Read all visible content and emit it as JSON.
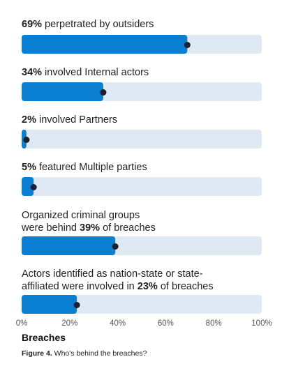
{
  "chart_data": {
    "type": "bar",
    "orientation": "horizontal",
    "xlim": [
      0,
      100
    ],
    "xticks": [
      "0%",
      "20%",
      "40%",
      "60%",
      "80%",
      "100%"
    ],
    "xlabel": "Breaches",
    "bar_color": "#0a7ed1",
    "track_color": "#dfe9f3",
    "marker_color": "#1c2033",
    "bars": [
      {
        "pre": "",
        "value_label": "69%",
        "post": " perpetrated by outsiders",
        "value": 69
      },
      {
        "pre": "",
        "value_label": "34%",
        "post": " involved Internal actors",
        "value": 34
      },
      {
        "pre": "",
        "value_label": "2%",
        "post": " involved Partners",
        "value": 2
      },
      {
        "pre": "",
        "value_label": "5%",
        "post": " featured Multiple parties",
        "value": 5
      },
      {
        "pre": "Organized criminal groups\nwere behind ",
        "value_label": "39%",
        "post": " of breaches",
        "value": 39
      },
      {
        "pre": "Actors identified as nation-state or state-\naffiliated were involved in ",
        "value_label": "23%",
        "post": " of breaches",
        "value": 23
      }
    ]
  },
  "caption": {
    "label": "Figure 4.",
    "text": " Who's behind the breaches?"
  }
}
